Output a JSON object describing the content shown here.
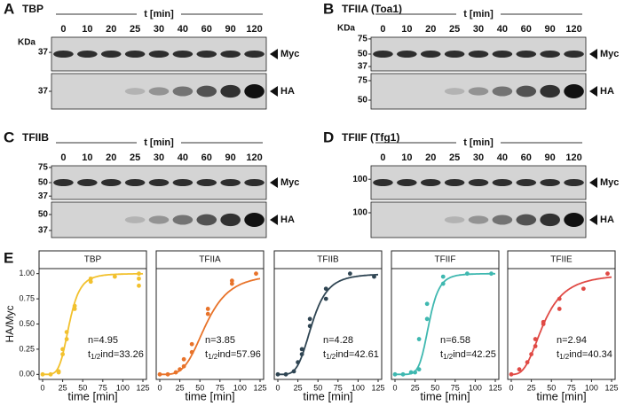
{
  "panels": [
    {
      "letter": "A",
      "title": "TBP",
      "time_label": "t [min]",
      "times": [
        "0",
        "10",
        "20",
        "25",
        "30",
        "40",
        "60",
        "90",
        "120"
      ],
      "kda_label": "KDa",
      "myc_markers": [
        "37"
      ],
      "ha_markers": [
        "37"
      ],
      "myc_label": "Myc",
      "ha_label": "HA"
    },
    {
      "letter": "B",
      "title": "TFIIA (Toa1)",
      "time_label": "t [min]",
      "times": [
        "0",
        "10",
        "20",
        "25",
        "30",
        "40",
        "60",
        "90",
        "120"
      ],
      "kda_label": "KDa",
      "myc_markers": [
        "75",
        "50",
        "37"
      ],
      "ha_markers": [
        "75",
        "50"
      ],
      "myc_label": "Myc",
      "ha_label": "HA"
    },
    {
      "letter": "C",
      "title": "TFIIB",
      "time_label": "t [min]",
      "times": [
        "0",
        "10",
        "20",
        "25",
        "30",
        "40",
        "60",
        "90",
        "120"
      ],
      "myc_markers": [
        "75",
        "50",
        "37"
      ],
      "ha_markers": [
        "50",
        "37"
      ],
      "myc_label": "Myc",
      "ha_label": "HA"
    },
    {
      "letter": "D",
      "title": "TFIIF (Tfg1)",
      "time_label": "t [min]",
      "times": [
        "0",
        "10",
        "20",
        "25",
        "30",
        "40",
        "60",
        "90",
        "120"
      ],
      "myc_markers": [
        "100"
      ],
      "ha_markers": [
        "100"
      ],
      "myc_label": "Myc",
      "ha_label": "HA"
    }
  ],
  "panel_e": {
    "letter": "E"
  },
  "chart_data": [
    {
      "type": "scatter",
      "title": "TBP",
      "color": "#f2c12e",
      "x": [
        0,
        10,
        20,
        20,
        25,
        25,
        30,
        30,
        40,
        40,
        60,
        60,
        90,
        120,
        120,
        120
      ],
      "y": [
        0,
        0,
        0.03,
        0.02,
        0.2,
        0.25,
        0.42,
        0.35,
        0.65,
        0.68,
        0.92,
        0.95,
        0.97,
        0.88,
        0.95,
        1.0
      ],
      "fit": {
        "n": 4.95,
        "t_half": 33.26
      },
      "annotation": "n=4.95",
      "halflife": [
        "t",
        "1/2",
        "ind=33.26"
      ],
      "xlim": [
        0,
        125
      ],
      "xticks": [
        0,
        25,
        50,
        75,
        100,
        125
      ],
      "ylim": [
        -0.05,
        1.05
      ],
      "yticks": [
        {
          "value": 0,
          "label": "0.00"
        },
        {
          "value": 0.25,
          "label": "0.25"
        },
        {
          "value": 0.5,
          "label": "0.50"
        },
        {
          "value": 0.75,
          "label": "0.75"
        },
        {
          "value": 1,
          "label": "1.00"
        }
      ],
      "ylabel": "HA/Myc",
      "xlabel": "time [min]"
    },
    {
      "type": "scatter",
      "title": "TFIIA",
      "color": "#e8732a",
      "x": [
        0,
        10,
        20,
        25,
        30,
        30,
        40,
        40,
        60,
        60,
        90,
        90,
        120
      ],
      "y": [
        0,
        0,
        0.02,
        0.05,
        0.08,
        0.15,
        0.22,
        0.3,
        0.65,
        0.6,
        0.93,
        0.9,
        1.0
      ],
      "fit": {
        "n": 3.85,
        "t_half": 57.96
      },
      "annotation": "n=3.85",
      "halflife": [
        "t",
        "1/2",
        "ind=57.96"
      ],
      "xlim": [
        0,
        125
      ],
      "xticks": [
        0,
        25,
        50,
        75,
        100,
        125
      ],
      "ylim": [
        -0.05,
        1.05
      ],
      "xlabel": "time [min]"
    },
    {
      "type": "scatter",
      "title": "TFIIB",
      "color": "#2f4553",
      "x": [
        0,
        10,
        20,
        25,
        30,
        30,
        40,
        40,
        60,
        60,
        90,
        120
      ],
      "y": [
        0,
        0,
        0.03,
        0.12,
        0.2,
        0.25,
        0.48,
        0.55,
        0.75,
        0.85,
        1.0,
        0.97
      ],
      "fit": {
        "n": 4.28,
        "t_half": 42.61
      },
      "annotation": "n=4.28",
      "halflife": [
        "t",
        "1/2",
        "ind=42.61"
      ],
      "xlim": [
        0,
        125
      ],
      "xticks": [
        0,
        25,
        50,
        75,
        100,
        125
      ],
      "ylim": [
        -0.05,
        1.05
      ],
      "xlabel": "time [min]"
    },
    {
      "type": "scatter",
      "title": "TFIIF",
      "color": "#3fb8b0",
      "x": [
        0,
        10,
        20,
        25,
        30,
        30,
        40,
        40,
        60,
        60,
        90,
        120
      ],
      "y": [
        0,
        0,
        0.02,
        0.02,
        0.05,
        0.35,
        0.55,
        0.7,
        0.97,
        0.9,
        1.0,
        1.0
      ],
      "fit": {
        "n": 6.58,
        "t_half": 42.25
      },
      "annotation": "n=6.58",
      "halflife": [
        "t",
        "1/2",
        "ind=42.25"
      ],
      "xlim": [
        0,
        125
      ],
      "xticks": [
        0,
        25,
        50,
        75,
        100,
        125
      ],
      "ylim": [
        -0.05,
        1.05
      ],
      "xlabel": "time [min]"
    },
    {
      "type": "scatter",
      "title": "TFIIE",
      "color": "#e04a45",
      "x": [
        0,
        10,
        20,
        25,
        30,
        30,
        40,
        40,
        60,
        60,
        90,
        120
      ],
      "y": [
        0,
        0.05,
        0.12,
        0.2,
        0.28,
        0.35,
        0.5,
        0.52,
        0.65,
        0.75,
        0.85,
        1.0
      ],
      "fit": {
        "n": 2.94,
        "t_half": 40.34
      },
      "annotation": "n=2.94",
      "halflife": [
        "t",
        "1/2",
        "ind=40.34"
      ],
      "xlim": [
        0,
        125
      ],
      "xticks": [
        0,
        25,
        50,
        75,
        100,
        125
      ],
      "ylim": [
        -0.05,
        1.05
      ],
      "xlabel": "time [min]"
    }
  ]
}
